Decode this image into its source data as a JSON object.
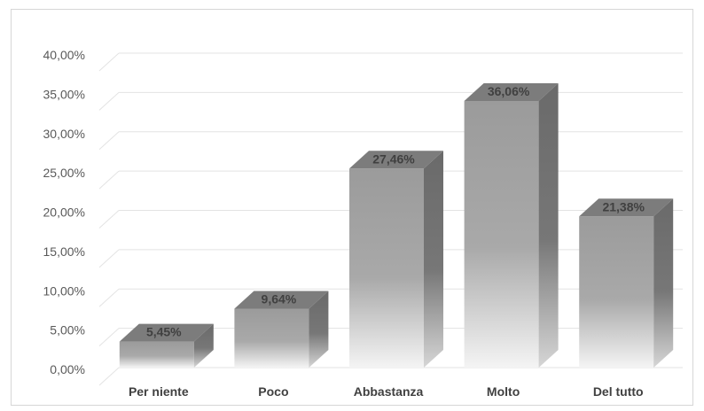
{
  "chart_data": {
    "type": "bar",
    "style": "3d-column",
    "categories": [
      "Per niente",
      "Poco",
      "Abbastanza",
      "Molto",
      "Del tutto"
    ],
    "values": [
      5.45,
      9.64,
      27.46,
      36.06,
      21.38
    ],
    "data_labels": [
      "5,45%",
      "9,64%",
      "27,46%",
      "36,06%",
      "21,38%"
    ],
    "y_ticks": [
      0,
      5,
      10,
      15,
      20,
      25,
      30,
      35,
      40
    ],
    "y_tick_labels": [
      "0,00%",
      "5,00%",
      "10,00%",
      "15,00%",
      "20,00%",
      "25,00%",
      "30,00%",
      "35,00%",
      "40,00%"
    ],
    "ylim": [
      0,
      40
    ],
    "grid": true,
    "legend": "none",
    "colors": {
      "front_top": "#9b9b9b",
      "front_bottom": "#f4f4f4",
      "side": "#6a6a6a",
      "top": "#7c7c7c",
      "grid": "#e3e3e3"
    }
  }
}
